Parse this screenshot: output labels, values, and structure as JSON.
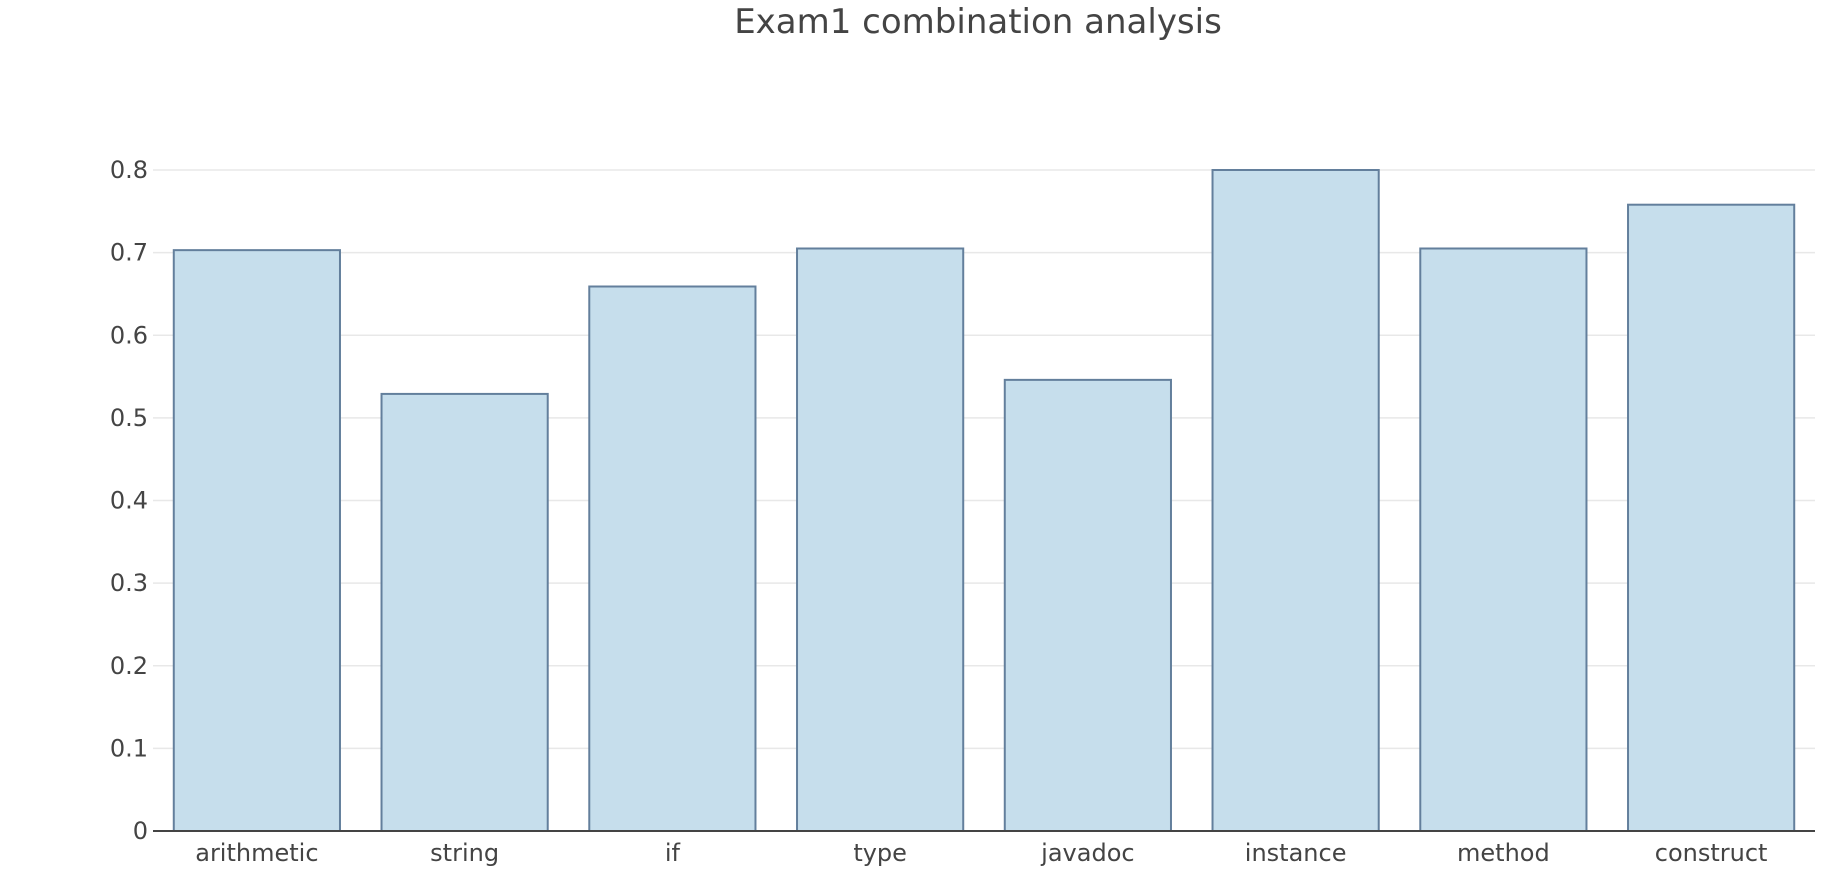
{
  "chart_data": {
    "type": "bar",
    "title": "Exam1 combination analysis",
    "xlabel": "",
    "ylabel": "",
    "categories": [
      "arithmetic",
      "string",
      "if",
      "type",
      "javadoc",
      "instance",
      "method",
      "construct"
    ],
    "values": [
      0.703,
      0.529,
      0.659,
      0.705,
      0.546,
      0.8,
      0.705,
      0.758
    ],
    "ylim": [
      0,
      0.8
    ],
    "yticks": [
      0,
      0.1,
      0.2,
      0.3,
      0.4,
      0.5,
      0.6,
      0.7,
      0.8
    ],
    "ytick_labels": [
      "0",
      "0.1",
      "0.2",
      "0.3",
      "0.4",
      "0.5",
      "0.6",
      "0.7",
      "0.8"
    ],
    "grid": true,
    "legend": "none",
    "colors": {
      "bar_fill": "#c6deec",
      "bar_edge": "#637f9c",
      "grid": "#e8e8e8",
      "axis": "#444444",
      "text": "#444444"
    }
  }
}
